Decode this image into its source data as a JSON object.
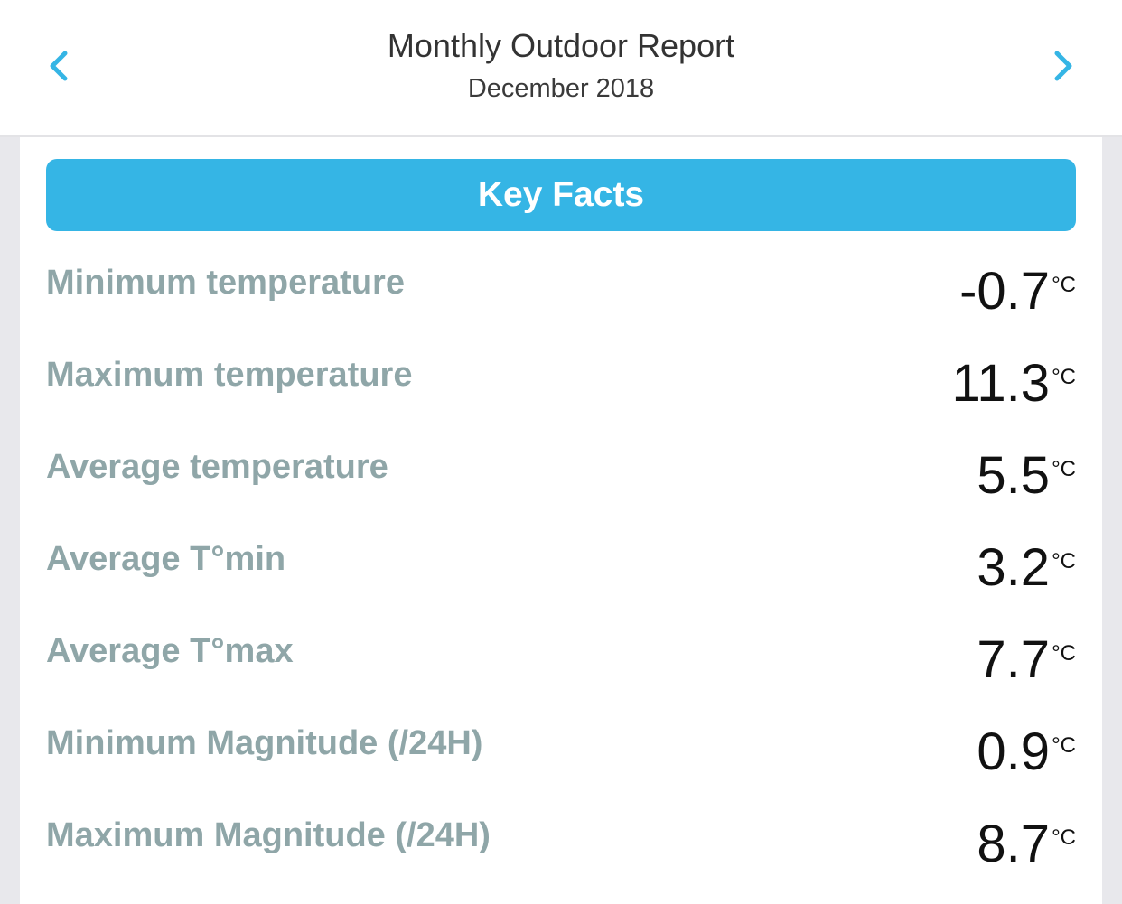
{
  "header": {
    "title": "Monthly Outdoor Report",
    "subtitle": "December 2018",
    "accent_color": "#35b5e5",
    "prev_icon": "chevron-left-icon",
    "next_icon": "chevron-right-icon"
  },
  "key_facts": {
    "heading": "Key Facts",
    "rows": [
      {
        "label": "Minimum temperature",
        "value": "-0.7",
        "unit": "°C"
      },
      {
        "label": "Maximum temperature",
        "value": "11.3",
        "unit": "°C"
      },
      {
        "label": "Average temperature",
        "value": "5.5",
        "unit": "°C"
      },
      {
        "label": "Average T°min",
        "value": "3.2",
        "unit": "°C"
      },
      {
        "label": "Average T°max",
        "value": "7.7",
        "unit": "°C"
      },
      {
        "label": "Minimum Magnitude (/24H)",
        "value": "0.9",
        "unit": "°C"
      },
      {
        "label": "Maximum Magnitude (/24H)",
        "value": "8.7",
        "unit": "°C"
      }
    ]
  }
}
